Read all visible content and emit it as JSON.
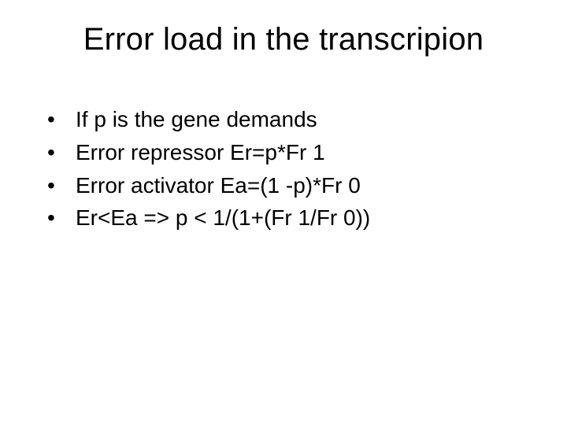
{
  "title_fontsize": 40,
  "bullet_fontsize": 28,
  "background_color": "#ffffff",
  "text_color": "#000000",
  "font_family": "Arial",
  "slide": {
    "title": "Error load in the transcripion",
    "bullets": [
      "If p is the gene demands",
      "Error repressor Er=p*Fr 1",
      "Error activator Ea=(1 -p)*Fr 0",
      "Er<Ea => p < 1/(1+(Fr 1/Fr 0))"
    ]
  }
}
